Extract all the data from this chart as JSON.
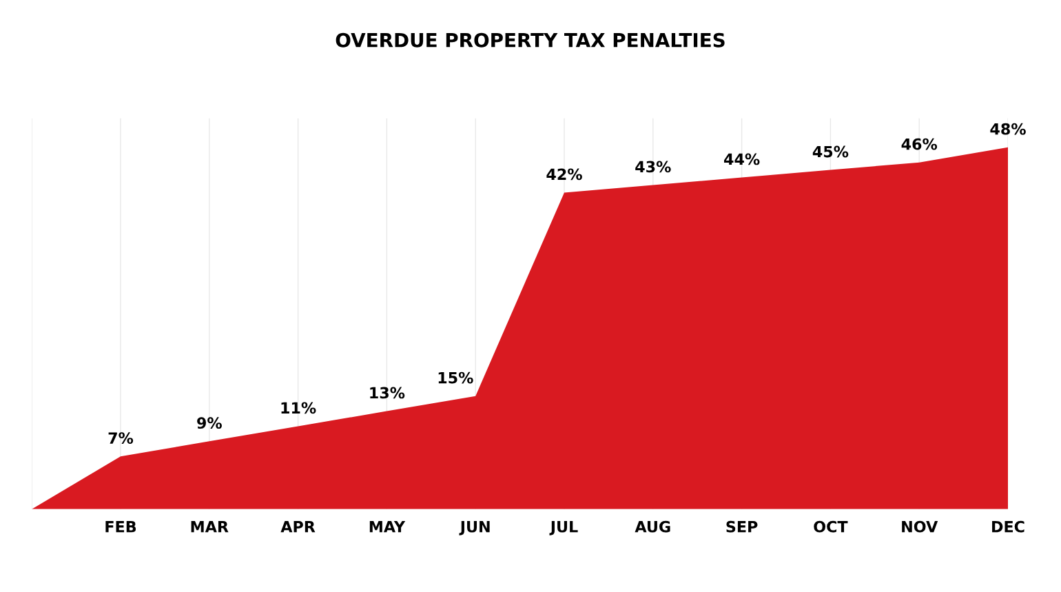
{
  "chart_data": {
    "type": "area",
    "title": "OVERDUE PROPERTY TAX PENALTIES",
    "categories": [
      null,
      "FEB",
      "MAR",
      "APR",
      "MAY",
      "JUN",
      "JUL",
      "AUG",
      "SEP",
      "OCT",
      "NOV",
      "DEC"
    ],
    "series": [
      {
        "color": "#d91a21",
        "values": [
          0,
          7,
          9,
          11,
          13,
          15,
          42,
          43,
          44,
          45,
          46,
          48
        ],
        "value_labels": [
          null,
          "7%",
          "9%",
          "11%",
          "13%",
          "15%",
          "42%",
          "43%",
          "44%",
          "45%",
          "46%",
          "48%"
        ]
      }
    ],
    "grid": "x",
    "tick_labels": "x"
  }
}
